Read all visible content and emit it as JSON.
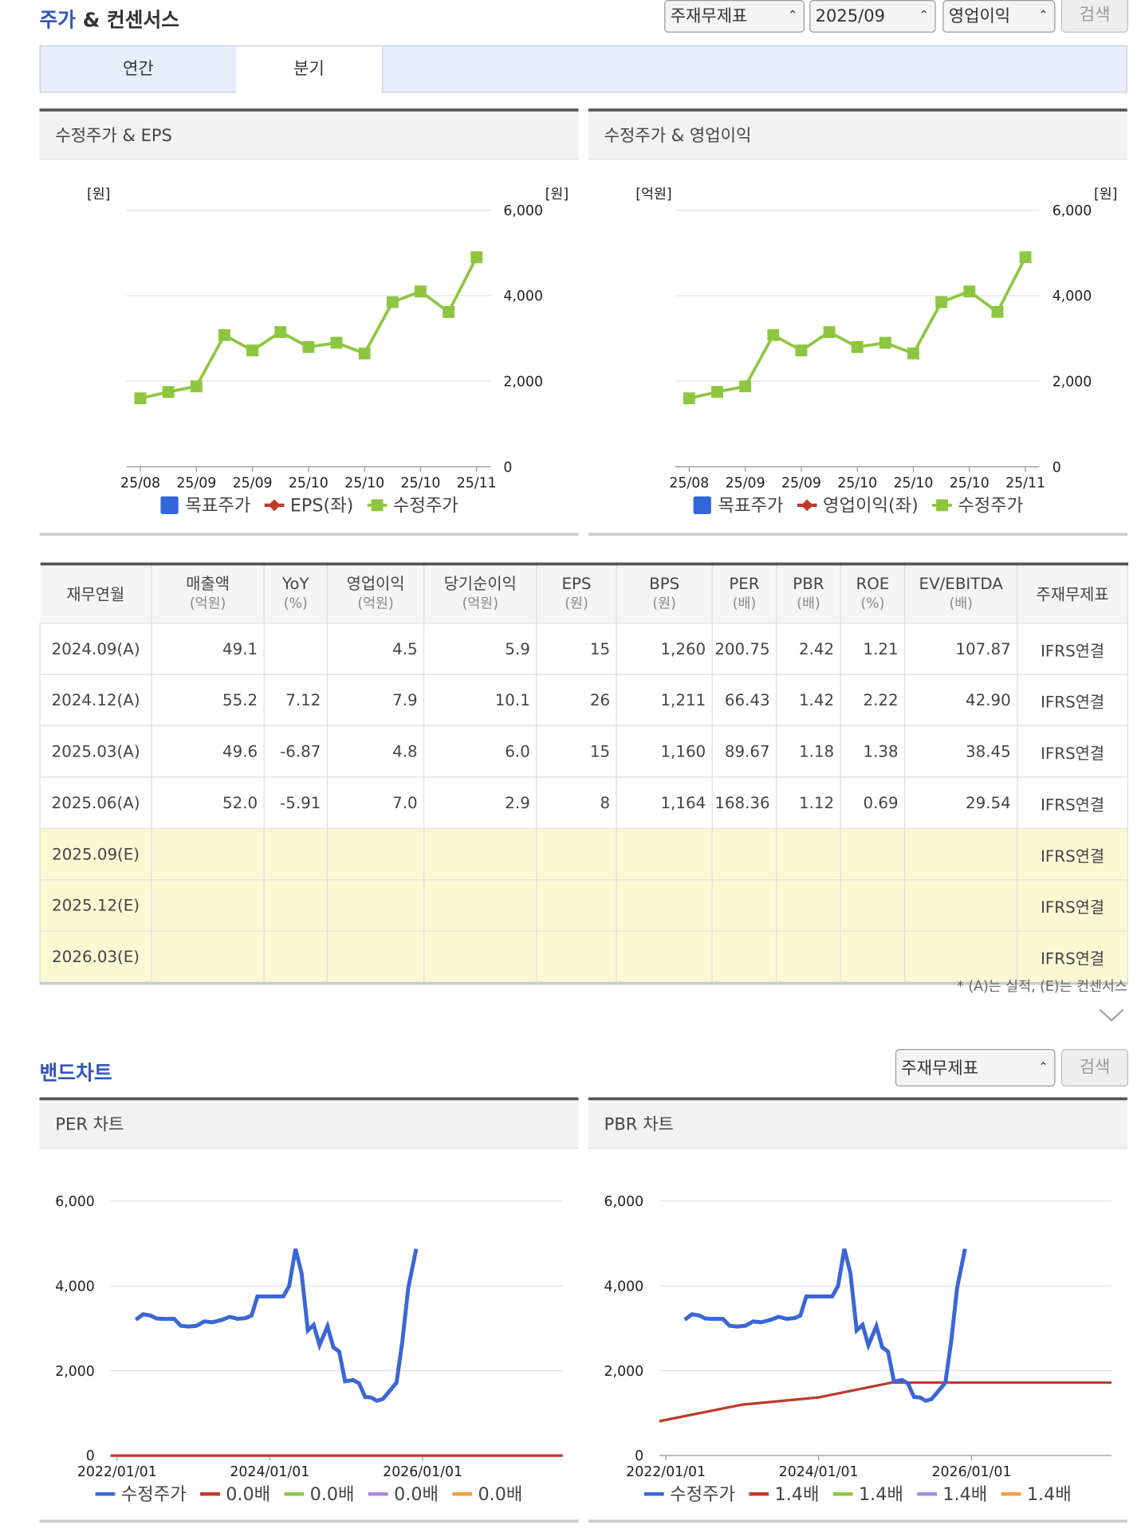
{
  "header": {
    "title_a": "주가",
    "title_b": "& 컨센서스",
    "selects": [
      "주재무제표",
      "2025/09",
      "영업이익"
    ],
    "button": "검색"
  },
  "tabs": [
    "연간",
    "분기"
  ],
  "panels": [
    "수정주가 & EPS",
    "수정주가 & 영업이익",
    "PER 차트",
    "PBR 차트"
  ],
  "chart_data": [
    {
      "type": "line",
      "ylabel_left": "[원]",
      "ylabel_right": "[원]",
      "categories": [
        "25/08",
        null,
        "25/09",
        null,
        "25/09",
        null,
        "25/10",
        null,
        "25/10",
        null,
        "25/10",
        null,
        "25/11"
      ],
      "ylim": [
        0,
        6000
      ],
      "yticks": [
        0,
        {
          "value": 2000,
          "label": "2,000"
        },
        {
          "value": 4000,
          "label": "4,000"
        },
        {
          "value": 6000,
          "label": "6,000"
        }
      ],
      "grid": true,
      "series": [
        {
          "name": "목표주가",
          "color": "#3366dd",
          "marker": "square",
          "values": [
            null,
            null,
            null,
            null,
            null,
            null,
            null,
            null,
            null,
            null,
            null,
            null,
            null
          ]
        },
        {
          "name": "EPS(좌)",
          "color": "#c0392b",
          "marker": "diamond",
          "values": [
            null,
            null,
            null,
            null,
            null,
            null,
            null,
            null,
            null,
            null,
            null,
            null,
            null
          ]
        },
        {
          "name": "수정주가",
          "color": "#8dc63f",
          "marker": "square",
          "values": [
            1600,
            1750,
            1880,
            3080,
            2720,
            3150,
            2800,
            2900,
            2650,
            3850,
            4100,
            3620,
            4900
          ]
        }
      ]
    },
    {
      "type": "line",
      "ylabel_left": "[억원]",
      "ylabel_right": "[원]",
      "categories": [
        "25/08",
        null,
        "25/09",
        null,
        "25/09",
        null,
        "25/10",
        null,
        "25/10",
        null,
        "25/10",
        null,
        "25/11"
      ],
      "ylim": [
        0,
        6000
      ],
      "yticks": [
        0,
        {
          "value": 2000,
          "label": "2,000"
        },
        {
          "value": 4000,
          "label": "4,000"
        },
        {
          "value": 6000,
          "label": "6,000"
        }
      ],
      "grid": true,
      "series": [
        {
          "name": "목표주가",
          "color": "#3366dd",
          "marker": "square",
          "values": [
            null,
            null,
            null,
            null,
            null,
            null,
            null,
            null,
            null,
            null,
            null,
            null,
            null
          ]
        },
        {
          "name": "영업이익(좌)",
          "color": "#c0392b",
          "marker": "diamond",
          "values": [
            null,
            null,
            null,
            null,
            null,
            null,
            null,
            null,
            null,
            null,
            null,
            null,
            null
          ]
        },
        {
          "name": "수정주가",
          "color": "#8dc63f",
          "marker": "square",
          "values": [
            1600,
            1750,
            1880,
            3080,
            2720,
            3150,
            2800,
            2900,
            2650,
            3850,
            4100,
            3620,
            4900
          ]
        }
      ]
    },
    {
      "type": "timeline",
      "xlim": [
        "2021/12/01",
        "2027/11/01"
      ],
      "xticks": [
        "2022/01/01",
        "2024/01/01",
        "2026/01/01"
      ],
      "ylim": [
        0,
        6000
      ],
      "yticks": [
        0,
        {
          "value": 2000,
          "label": "2,000"
        },
        {
          "value": 4000,
          "label": "4,000"
        },
        {
          "value": 6000,
          "label": "6,000"
        }
      ],
      "grid": true,
      "series": [
        {
          "name": "수정주가",
          "color": "#3a66d6",
          "x": [
            "2022/04/01",
            "2022/05/06",
            "2022/06/10",
            "2022/07/08",
            "2022/08/15",
            "2022/10/01",
            "2022/11/01",
            "2022/12/09",
            "2023/01/16",
            "2023/02/22",
            "2023/04/01",
            "2023/05/18",
            "2023/06/24",
            "2023/08/01",
            "2023/09/08",
            "2023/10/06",
            "2023/11/03",
            "2024/03/06",
            "2024/04/03",
            "2024/05/03",
            "2024/06/01",
            "2024/07/01",
            "2024/07/29",
            "2024/08/26",
            "2024/10/03",
            "2024/10/31",
            "2024/11/28",
            "2024/12/26",
            "2025/02/03",
            "2025/03/03",
            "2025/04/01",
            "2025/04/29",
            "2025/05/27",
            "2025/06/24",
            "2025/08/01",
            "2025/08/29",
            "2025/09/26",
            "2025/10/24",
            "2025/12/01"
          ],
          "values": [
            3200,
            3330,
            3300,
            3230,
            3220,
            3220,
            3060,
            3040,
            3060,
            3160,
            3140,
            3200,
            3270,
            3220,
            3240,
            3300,
            3750,
            3750,
            4000,
            4870,
            4300,
            2950,
            3080,
            2600,
            3050,
            2550,
            2450,
            1750,
            1780,
            1700,
            1380,
            1370,
            1290,
            1330,
            1550,
            1720,
            2700,
            3950,
            4870
          ]
        },
        {
          "name": "0.0배",
          "color": "#c0392b",
          "x": [
            "2021/12/01",
            "2027/11/01"
          ],
          "values": [
            0,
            0
          ]
        },
        {
          "name": "0.0배",
          "color": "#8dc63f",
          "x": [
            "2021/12/01",
            "2027/11/01"
          ],
          "values": [
            0,
            0
          ]
        },
        {
          "name": "0.0배",
          "color": "#a78bdb",
          "x": [
            "2021/12/01",
            "2027/11/01"
          ],
          "values": [
            0,
            0
          ]
        },
        {
          "name": "0.0배",
          "color": "#f0a040",
          "x": [
            "2021/12/01",
            "2027/11/01"
          ],
          "values": [
            0,
            0
          ]
        }
      ]
    },
    {
      "type": "timeline",
      "xlim": [
        "2021/12/01",
        "2027/11/01"
      ],
      "xticks": [
        "2022/01/01",
        "2024/01/01",
        "2026/01/01"
      ],
      "ylim": [
        0,
        6000
      ],
      "yticks": [
        0,
        {
          "value": 2000,
          "label": "2,000"
        },
        {
          "value": 4000,
          "label": "4,000"
        },
        {
          "value": 6000,
          "label": "6,000"
        }
      ],
      "grid": true,
      "series": [
        {
          "name": "수정주가",
          "color": "#3a66d6",
          "x": [
            "2022/04/01",
            "2022/05/06",
            "2022/06/10",
            "2022/07/08",
            "2022/08/15",
            "2022/10/01",
            "2022/11/01",
            "2022/12/09",
            "2023/01/16",
            "2023/02/22",
            "2023/04/01",
            "2023/05/18",
            "2023/06/24",
            "2023/08/01",
            "2023/09/08",
            "2023/10/06",
            "2023/11/03",
            "2024/03/06",
            "2024/04/03",
            "2024/05/03",
            "2024/06/01",
            "2024/07/01",
            "2024/07/29",
            "2024/08/26",
            "2024/10/03",
            "2024/10/31",
            "2024/11/28",
            "2024/12/26",
            "2025/02/03",
            "2025/03/03",
            "2025/04/01",
            "2025/04/29",
            "2025/05/27",
            "2025/06/24",
            "2025/08/01",
            "2025/08/29",
            "2025/09/26",
            "2025/10/24",
            "2025/12/01"
          ],
          "values": [
            3200,
            3330,
            3300,
            3230,
            3220,
            3220,
            3060,
            3040,
            3060,
            3160,
            3140,
            3200,
            3270,
            3220,
            3240,
            3300,
            3750,
            3750,
            4000,
            4870,
            4300,
            2950,
            3080,
            2600,
            3050,
            2550,
            2450,
            1750,
            1780,
            1700,
            1380,
            1370,
            1290,
            1330,
            1550,
            1720,
            2700,
            3950,
            4870
          ]
        },
        {
          "name": "1.4배",
          "color": "#c0392b",
          "x": [
            "2021/12/01",
            "2023/01/01",
            "2024/01/01",
            "2024/12/15",
            "2027/11/01"
          ],
          "values": [
            810,
            1200,
            1370,
            1720,
            1720
          ]
        },
        {
          "name": "1.4배",
          "color": "#8dc63f",
          "x": [
            "2021/12/01",
            "2023/01/01",
            "2024/01/01",
            "2024/12/15",
            "2027/11/01"
          ],
          "values": [
            810,
            1200,
            1370,
            1720,
            1720
          ]
        },
        {
          "name": "1.4배",
          "color": "#a78bdb",
          "x": [
            "2021/12/01",
            "2023/01/01",
            "2024/01/01",
            "2024/12/15",
            "2027/11/01"
          ],
          "values": [
            810,
            1200,
            1370,
            1720,
            1720
          ]
        },
        {
          "name": "1.4배",
          "color": "#f0a040",
          "x": [
            "2021/12/01",
            "2023/01/01",
            "2024/01/01",
            "2024/12/15",
            "2027/11/01"
          ],
          "values": [
            810,
            1200,
            1370,
            1720,
            1720
          ]
        }
      ]
    }
  ],
  "table": {
    "headers": [
      {
        "label": "재무연월"
      },
      {
        "label": "매출액",
        "unit": "(억원)"
      },
      {
        "label": "YoY",
        "unit": "(%)"
      },
      {
        "label": "영업이익",
        "unit": "(억원)"
      },
      {
        "label": "당기순이익",
        "unit": "(억원)"
      },
      {
        "label": "EPS",
        "unit": "(원)"
      },
      {
        "label": "BPS",
        "unit": "(원)"
      },
      {
        "label": "PER",
        "unit": "(배)"
      },
      {
        "label": "PBR",
        "unit": "(배)"
      },
      {
        "label": "ROE",
        "unit": "(%)"
      },
      {
        "label": "EV/EBITDA",
        "unit": "(배)"
      },
      {
        "label": "주재무제표"
      }
    ],
    "rows": [
      [
        "2024.09(A)",
        "49.1",
        null,
        "4.5",
        "5.9",
        "15",
        "1,260",
        "200.75",
        "2.42",
        "1.21",
        "107.87",
        "IFRS연결"
      ],
      [
        "2024.12(A)",
        "55.2",
        "7.12",
        "7.9",
        "10.1",
        "26",
        "1,211",
        "66.43",
        "1.42",
        "2.22",
        "42.90",
        "IFRS연결"
      ],
      [
        "2025.03(A)",
        "49.6",
        "-6.87",
        "4.8",
        "6.0",
        "15",
        "1,160",
        "89.67",
        "1.18",
        "1.38",
        "38.45",
        "IFRS연결"
      ],
      [
        "2025.06(A)",
        "52.0",
        "-5.91",
        "7.0",
        "2.9",
        "8",
        "1,164",
        "168.36",
        "1.12",
        "0.69",
        "29.54",
        "IFRS연결"
      ],
      [
        "2025.09(E)",
        null,
        null,
        null,
        null,
        null,
        null,
        null,
        null,
        null,
        null,
        "IFRS연결"
      ],
      [
        "2025.12(E)",
        null,
        null,
        null,
        null,
        null,
        null,
        null,
        null,
        null,
        null,
        "IFRS연결"
      ],
      [
        "2026.03(E)",
        null,
        null,
        null,
        null,
        null,
        null,
        null,
        null,
        null,
        null,
        "IFRS연결"
      ]
    ],
    "note": "* (A)는 실적, (E)는 컨센서스"
  },
  "band": {
    "title": "밴드차트",
    "select": "주재무제표",
    "button": "검색"
  }
}
